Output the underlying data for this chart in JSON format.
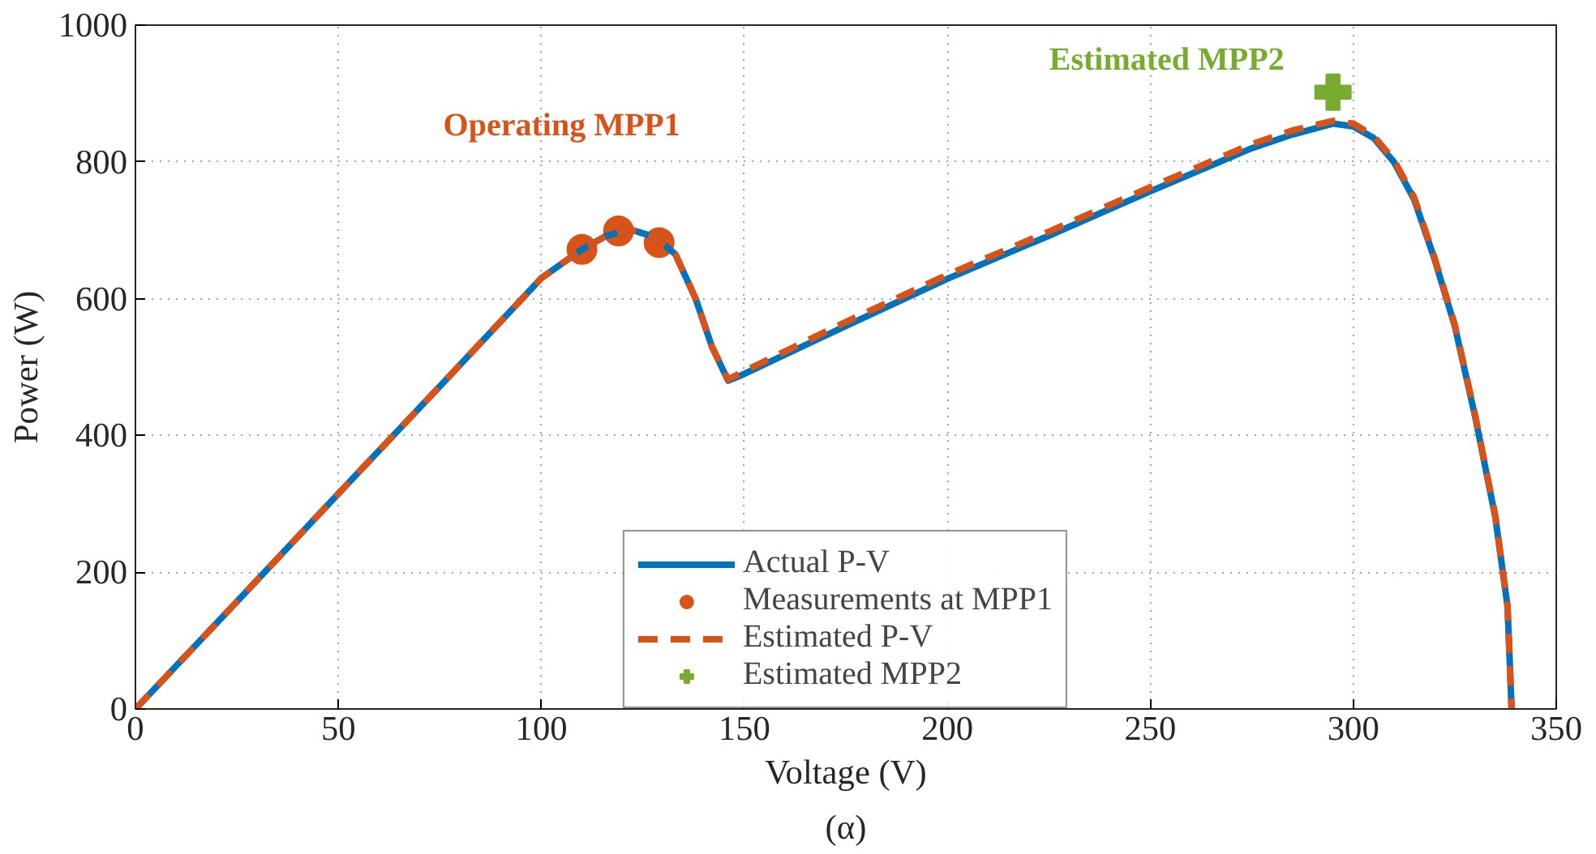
{
  "chart_data": {
    "type": "line",
    "xlabel": "Voltage (V)",
    "ylabel": "Power (W)",
    "xlim": [
      0,
      350
    ],
    "ylim": [
      0,
      1000
    ],
    "xticks": [
      0,
      50,
      100,
      150,
      200,
      250,
      300,
      350
    ],
    "yticks": [
      0,
      200,
      400,
      600,
      800,
      1000
    ],
    "grid": true,
    "legend": "bottom",
    "series": [
      {
        "name": "Actual P-V",
        "color": "#0072bd",
        "line_style": "solid",
        "x": [
          0,
          25,
          50,
          75,
          100,
          110,
          116,
          122,
          128,
          133,
          138,
          142,
          146,
          150,
          175,
          200,
          225,
          250,
          275,
          285,
          295,
          300,
          305,
          310,
          315,
          320,
          325,
          330,
          335,
          338,
          339
        ],
        "values": [
          0,
          157,
          315,
          472,
          630,
          672,
          692,
          701,
          690,
          665,
          600,
          530,
          480,
          490,
          560,
          629,
          692,
          757,
          820,
          840,
          856,
          852,
          835,
          800,
          745,
          658,
          560,
          428,
          280,
          150,
          0
        ]
      },
      {
        "name": "Measurements at MPP1",
        "type": "scatter",
        "color": "#d95319",
        "marker": "circle",
        "x": [
          110,
          119,
          129
        ],
        "values": [
          672,
          699,
          682
        ]
      },
      {
        "name": "Estimated P-V",
        "color": "#d95319",
        "line_style": "dashed",
        "x": [
          0,
          25,
          50,
          75,
          100,
          110,
          116,
          122,
          128,
          133,
          138,
          142,
          146,
          150,
          175,
          200,
          225,
          250,
          275,
          285,
          295,
          300,
          305,
          310,
          315,
          320,
          325,
          330,
          335,
          338,
          339
        ],
        "values": [
          0,
          157,
          315,
          472,
          630,
          672,
          692,
          701,
          690,
          665,
          600,
          530,
          482,
          494,
          566,
          635,
          698,
          763,
          826,
          846,
          860,
          856,
          838,
          803,
          748,
          660,
          562,
          430,
          282,
          150,
          0
        ]
      },
      {
        "name": "Estimated MPP2",
        "type": "scatter",
        "color": "#77ac30",
        "marker": "cross",
        "x": [
          295
        ],
        "values": [
          902
        ]
      }
    ],
    "annotations": [
      "Operating MPP1",
      "Estimated MPP2",
      "(α)"
    ]
  }
}
